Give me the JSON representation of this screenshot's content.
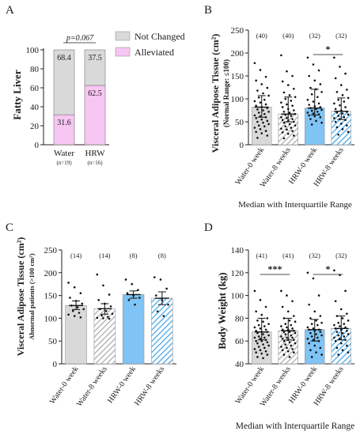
{
  "colors": {
    "grey": "#d9d9d9",
    "pink": "#f7c6f2",
    "blue": "#7fc4f5",
    "hatch_grey": "#a8a8a8",
    "hatch_blue": "#4aa8e8",
    "axis": "#222222"
  },
  "chart_data": [
    {
      "panel": "A",
      "type": "bar",
      "stacked": true,
      "ylabel": "Fatty Liver",
      "ylim": [
        0,
        100
      ],
      "yticks": [
        0,
        20,
        40,
        60,
        80,
        100
      ],
      "categories": [
        "Water",
        "HRW"
      ],
      "category_notes": [
        "(n=19)",
        "(n=16)"
      ],
      "series": [
        {
          "name": "Alleviated",
          "values": [
            31.6,
            62.5
          ],
          "labels": [
            "31.6",
            "62.5"
          ]
        },
        {
          "name": "Not Changed",
          "values": [
            68.4,
            37.5
          ],
          "labels": [
            "68.4",
            "37.5"
          ]
        }
      ],
      "annotation": "p=0.067",
      "legend_position": "top-right"
    },
    {
      "panel": "B",
      "type": "bar",
      "ylabel": "Visceral Adipose Tissue (cm²)",
      "ylabel2": "(Normal Range: ≤100)",
      "ylim": [
        0,
        250
      ],
      "yticks": [
        0,
        50,
        100,
        150,
        200,
        250
      ],
      "categories": [
        "Water-0 week",
        "Water-8 weeks",
        "HRW-0 week",
        "HRW-8 weeks"
      ],
      "values": [
        82,
        67,
        80,
        73
      ],
      "err_low": [
        60,
        50,
        65,
        55
      ],
      "err_high": [
        107,
        104,
        121,
        102
      ],
      "counts": [
        "(40)",
        "(40)",
        "(32)",
        "(32)"
      ],
      "significance": {
        "from": 2,
        "to": 3,
        "label": "*"
      },
      "xlabel": "Median with Interquartile Range",
      "points": [
        [
          178,
          163,
          148,
          140,
          132,
          124,
          118,
          112,
          107,
          103,
          98,
          95,
          92,
          88,
          85,
          82,
          80,
          77,
          75,
          72,
          70,
          67,
          64,
          62,
          60,
          58,
          55,
          52,
          50,
          48,
          45,
          42,
          40,
          37,
          34,
          30,
          28,
          25,
          20,
          15
        ],
        [
          195,
          160,
          150,
          138,
          130,
          122,
          114,
          108,
          104,
          100,
          96,
          92,
          88,
          85,
          82,
          78,
          75,
          72,
          70,
          67,
          65,
          63,
          60,
          58,
          56,
          54,
          52,
          50,
          48,
          45,
          42,
          40,
          37,
          35,
          33,
          30,
          27,
          24,
          20,
          14
        ],
        [
          190,
          175,
          162,
          150,
          140,
          132,
          124,
          121,
          115,
          110,
          104,
          98,
          94,
          90,
          87,
          84,
          82,
          80,
          78,
          76,
          74,
          72,
          70,
          68,
          66,
          64,
          62,
          60,
          56,
          52,
          48,
          44
        ],
        [
          190,
          170,
          155,
          145,
          130,
          120,
          115,
          108,
          102,
          98,
          94,
          90,
          86,
          82,
          78,
          75,
          72,
          70,
          68,
          66,
          63,
          60,
          58,
          56,
          54,
          50,
          46,
          42,
          38,
          34,
          28,
          22
        ]
      ]
    },
    {
      "panel": "C",
      "type": "bar",
      "ylabel": "Visceral Adipose Tissue (cm²)",
      "ylabel2": "Abnormal patients (>100 cm²)",
      "ylim": [
        0,
        250
      ],
      "yticks": [
        0,
        50,
        100,
        150,
        200,
        250
      ],
      "categories": [
        "Water-0 week",
        "Water-8 weeks",
        "HRW-0 week",
        "HRW-8 weeks"
      ],
      "values": [
        128,
        121,
        152,
        144
      ],
      "err_low": [
        119,
        109,
        144,
        130
      ],
      "err_high": [
        138,
        132,
        160,
        158
      ],
      "counts": [
        "(14)",
        "(14)",
        "(8)",
        "(8)"
      ],
      "points": [
        [
          178,
          168,
          155,
          145,
          138,
          132,
          128,
          124,
          120,
          116,
          112,
          108,
          105,
          102
        ],
        [
          196,
          172,
          152,
          140,
          132,
          126,
          120,
          116,
          110,
          106,
          103,
          101,
          100,
          99
        ],
        [
          185,
          175,
          162,
          155,
          150,
          145,
          140,
          130
        ],
        [
          190,
          185,
          165,
          150,
          140,
          130,
          115,
          105
        ]
      ]
    },
    {
      "panel": "D",
      "type": "bar",
      "ylabel": "Body Weight (kg)",
      "ylim": [
        40,
        140
      ],
      "yticks": [
        40,
        60,
        80,
        100,
        120,
        140
      ],
      "categories": [
        "Water-0 week",
        "Water-8 weeks",
        "HRW-0 week",
        "HRW-8 weeks"
      ],
      "values": [
        68,
        69,
        70,
        71
      ],
      "err_low": [
        61,
        61,
        60,
        61
      ],
      "err_high": [
        80,
        80,
        79,
        82
      ],
      "counts": [
        "(41)",
        "(41)",
        "(32)",
        "(32)"
      ],
      "significance": [
        {
          "from": 0,
          "to": 1,
          "label": "***"
        },
        {
          "from": 2,
          "to": 3,
          "label": "*"
        }
      ],
      "xlabel": "Median with Interquartile Range",
      "points": [
        [
          104,
          96,
          90,
          86,
          83,
          80,
          78,
          77,
          75,
          74,
          73,
          72,
          71,
          70,
          69,
          68,
          68,
          67,
          66,
          65,
          64,
          63,
          63,
          62,
          61,
          60,
          60,
          59,
          58,
          57,
          56,
          55,
          54,
          53,
          52,
          51,
          50,
          49,
          48,
          46,
          45
        ],
        [
          104,
          100,
          95,
          90,
          86,
          82,
          80,
          78,
          77,
          75,
          74,
          73,
          72,
          71,
          70,
          70,
          69,
          68,
          68,
          67,
          66,
          65,
          64,
          63,
          63,
          62,
          61,
          61,
          60,
          59,
          58,
          57,
          56,
          55,
          54,
          53,
          52,
          51,
          50,
          48,
          46
        ],
        [
          120,
          115,
          100,
          92,
          86,
          82,
          80,
          78,
          76,
          75,
          74,
          72,
          71,
          70,
          70,
          69,
          68,
          67,
          66,
          65,
          64,
          63,
          62,
          61,
          60,
          58,
          56,
          54,
          52,
          50,
          48,
          46
        ],
        [
          122,
          118,
          104,
          95,
          88,
          84,
          82,
          80,
          78,
          76,
          75,
          74,
          73,
          72,
          71,
          70,
          69,
          68,
          67,
          66,
          65,
          64,
          63,
          62,
          61,
          60,
          58,
          56,
          54,
          52,
          50,
          48
        ]
      ]
    }
  ],
  "panel_labels": [
    "A",
    "B",
    "C",
    "D"
  ]
}
